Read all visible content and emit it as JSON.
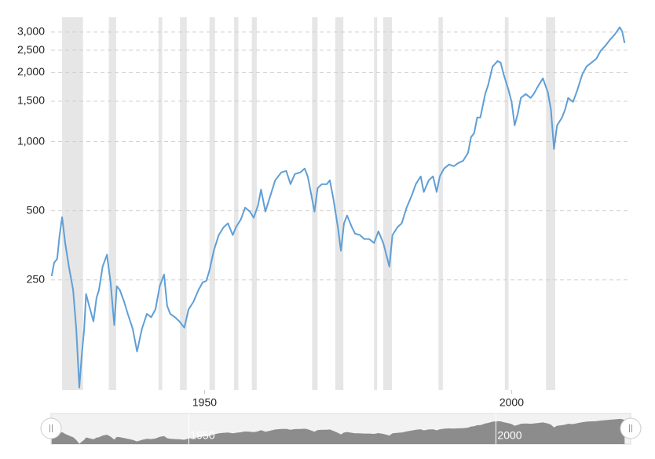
{
  "chart_data": {
    "type": "line",
    "log_scale": true,
    "grid": true,
    "xlim": [
      1925,
      2019
    ],
    "ylim": [
      83,
      3480
    ],
    "xticks": [
      1950,
      2000
    ],
    "yticks": [
      250,
      500,
      {
        "value": 1000,
        "label": "1,000"
      },
      {
        "value": 1500,
        "label": "1,500"
      },
      {
        "value": 2000,
        "label": "2,000"
      },
      {
        "value": 2500,
        "label": "2,500"
      },
      {
        "value": 3000,
        "label": "3,000"
      }
    ],
    "recession_color": "#e6e6e6",
    "recessions": [
      [
        1926.8,
        1930.2
      ],
      [
        1934.4,
        1935.6
      ],
      [
        1942.5,
        1943.1
      ],
      [
        1946.0,
        1947.1
      ],
      [
        1950.8,
        1951.7
      ],
      [
        1954.8,
        1955.5
      ],
      [
        1957.7,
        1958.5
      ],
      [
        1967.5,
        1968.4
      ],
      [
        1971.3,
        1972.6
      ],
      [
        1977.6,
        1978.1
      ],
      [
        1979.1,
        1980.5
      ],
      [
        1988.1,
        1988.8
      ],
      [
        1998.9,
        1999.5
      ],
      [
        2005.6,
        2007.1
      ]
    ],
    "series": [
      {
        "color": "#5f9fd6",
        "x": [
          1925.1,
          1925.5,
          1926.0,
          1926.4,
          1926.8,
          1927.3,
          1927.9,
          1928.6,
          1929.1,
          1929.6,
          1930.0,
          1930.4,
          1930.7,
          1931.2,
          1931.9,
          1932.4,
          1932.8,
          1933.4,
          1934.1,
          1934.7,
          1935.3,
          1935.7,
          1936.2,
          1936.9,
          1937.5,
          1938.3,
          1939.0,
          1939.8,
          1940.6,
          1941.3,
          1942.0,
          1942.7,
          1943.4,
          1943.9,
          1944.4,
          1945.2,
          1945.9,
          1946.7,
          1947.4,
          1948.2,
          1949.0,
          1949.7,
          1950.3,
          1950.8,
          1951.5,
          1952.3,
          1953.1,
          1953.8,
          1954.6,
          1955.1,
          1955.9,
          1956.6,
          1957.4,
          1958.0,
          1958.7,
          1959.2,
          1959.9,
          1960.5,
          1961.5,
          1962.5,
          1963.3,
          1964.0,
          1964.7,
          1965.6,
          1966.3,
          1966.8,
          1967.3,
          1967.9,
          1968.4,
          1969.1,
          1969.9,
          1970.4,
          1971.0,
          1971.7,
          1972.2,
          1972.7,
          1973.2,
          1974.0,
          1974.5,
          1975.3,
          1976.0,
          1976.8,
          1977.6,
          1978.3,
          1979.1,
          1979.6,
          1980.1,
          1980.6,
          1981.4,
          1982.1,
          1982.9,
          1983.7,
          1984.4,
          1985.2,
          1985.7,
          1986.5,
          1987.2,
          1987.8,
          1988.3,
          1989.0,
          1989.8,
          1990.6,
          1991.3,
          1992.1,
          1992.9,
          1993.4,
          1993.9,
          1994.4,
          1994.9,
          1995.7,
          1996.2,
          1996.9,
          1997.7,
          1998.2,
          1998.7,
          1999.5,
          2000.0,
          2000.5,
          2001.0,
          2001.5,
          2002.3,
          2003.1,
          2003.6,
          2004.3,
          2005.1,
          2005.9,
          2006.4,
          2006.9,
          2007.4,
          2008.2,
          2008.7,
          2009.2,
          2010.0,
          2010.7,
          2011.5,
          2012.2,
          2013.0,
          2013.8,
          2014.5,
          2015.3,
          2016.1,
          2016.8,
          2017.6,
          2018.0,
          2018.4
        ],
        "values": [
          260,
          297,
          309,
          392,
          469,
          362,
          286,
          226,
          153,
          85,
          118,
          153,
          217,
          193,
          165,
          209,
          226,
          286,
          322,
          244,
          159,
          235,
          226,
          201,
          178,
          153,
          122,
          153,
          178,
          172,
          186,
          235,
          264,
          193,
          178,
          172,
          165,
          155,
          186,
          201,
          226,
          244,
          248,
          275,
          335,
          392,
          424,
          441,
          392,
          424,
          458,
          516,
          496,
          466,
          528,
          618,
          496,
          558,
          679,
          735,
          746,
          653,
          723,
          735,
          764,
          706,
          604,
          496,
          628,
          653,
          653,
          679,
          558,
          424,
          335,
          441,
          477,
          424,
          398,
          392,
          377,
          377,
          362,
          407,
          362,
          322,
          286,
          392,
          424,
          441,
          516,
          580,
          653,
          706,
          604,
          679,
          706,
          604,
          706,
          764,
          795,
          782,
          807,
          826,
          894,
          1046,
          1088,
          1274,
          1274,
          1613,
          1772,
          2123,
          2243,
          2208,
          1963,
          1677,
          1491,
          1177,
          1325,
          1550,
          1613,
          1550,
          1613,
          1744,
          1887,
          1638,
          1378,
          930,
          1177,
          1274,
          1378,
          1550,
          1491,
          1677,
          1963,
          2123,
          2208,
          2296,
          2485,
          2624,
          2795,
          2930,
          3146,
          3024,
          2688
        ]
      }
    ]
  }
}
